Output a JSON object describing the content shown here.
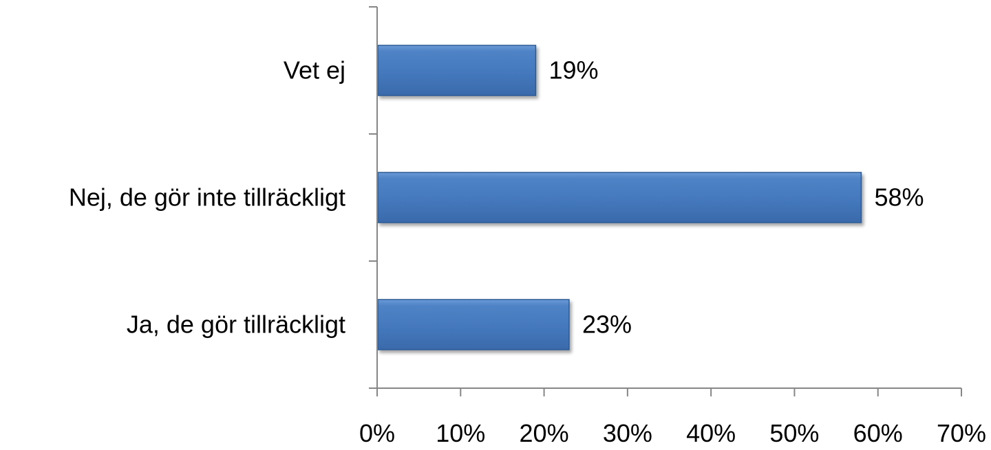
{
  "chart_data": {
    "type": "bar",
    "orientation": "horizontal",
    "categories": [
      "Ja, de gör tillräckligt",
      "Nej, de gör inte tillräckligt",
      "Vet ej"
    ],
    "values": [
      23,
      58,
      19
    ],
    "value_labels": [
      "23%",
      "58%",
      "19%"
    ],
    "xlim": [
      0,
      70
    ],
    "x_ticks": [
      0,
      10,
      20,
      30,
      40,
      50,
      60,
      70
    ],
    "x_tick_labels": [
      "0%",
      "10%",
      "20%",
      "30%",
      "40%",
      "50%",
      "60%",
      "70%"
    ],
    "grid": false,
    "legend": "none",
    "bar_color": "#4a7ebb",
    "bar_edge_color": "#2c5a94"
  }
}
